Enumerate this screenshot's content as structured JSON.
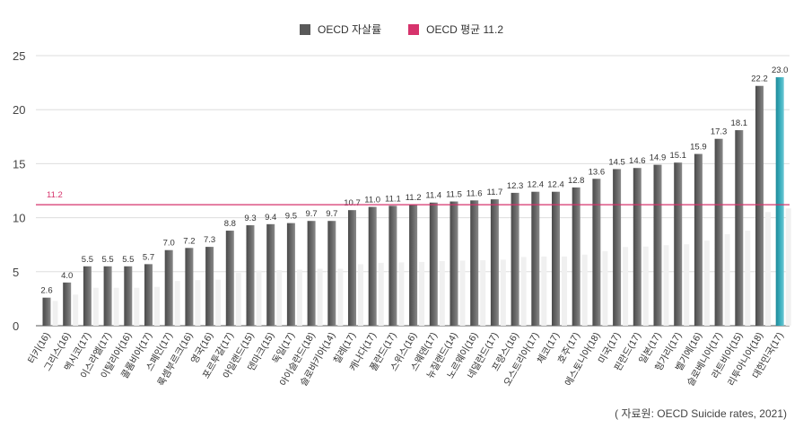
{
  "chart_data": {
    "type": "bar",
    "legend": {
      "series_label": "OECD 자살률",
      "average_label": "OECD 평균 11.2",
      "series_color": "#595959",
      "average_color": "#d6336c",
      "highlight_color": "#2e9fb0"
    },
    "categories": [
      "터키(16)",
      "그리스(16)",
      "멕시코(17)",
      "이스라엘(17)",
      "이탈리아(16)",
      "콜롬비아(17)",
      "스페인(17)",
      "룩셈부르크(16)",
      "영국(16)",
      "포르투갈(17)",
      "아일랜드(15)",
      "덴마크(15)",
      "독일(17)",
      "아이슬란드(18)",
      "슬로바키아(14)",
      "칠레(17)",
      "캐나다(17)",
      "폴란드(17)",
      "스위스(16)",
      "스웨덴(17)",
      "뉴질랜드(14)",
      "노르웨이(16)",
      "네덜란드(17)",
      "프랑스(16)",
      "오스트리아(17)",
      "체코(17)",
      "호주(17)",
      "에스토니아(18)",
      "미국(17)",
      "핀란드(17)",
      "일본(17)",
      "헝가리(17)",
      "벨기에(16)",
      "슬로베니아(17)",
      "라트비아(15)",
      "리투아니아(18)",
      "대한민국(17)"
    ],
    "values": [
      2.6,
      4.0,
      5.5,
      5.5,
      5.5,
      5.7,
      7.0,
      7.2,
      7.3,
      8.8,
      9.3,
      9.4,
      9.5,
      9.7,
      9.7,
      10.7,
      11.0,
      11.1,
      11.2,
      11.4,
      11.5,
      11.6,
      11.7,
      12.3,
      12.4,
      12.4,
      12.8,
      13.6,
      14.5,
      14.6,
      14.9,
      15.1,
      15.9,
      17.3,
      18.1,
      22.2,
      23.0
    ],
    "value_labels": [
      "2.6",
      "4.0",
      "5.5",
      "5.5",
      "5.5",
      "5.7",
      "7.0",
      "7.2",
      "7.3",
      "8.8",
      "9.3",
      "9.4",
      "9.5",
      "9.7",
      "9.7",
      "10.7",
      "11.0",
      "11.1",
      "11.2",
      "11.4",
      "11.5",
      "11.6",
      "11.7",
      "12.3",
      "12.4",
      "12.4",
      "12.8",
      "13.6",
      "14.5",
      "14.6",
      "14.9",
      "15.1",
      "15.9",
      "17.3",
      "18.1",
      "22.2",
      "23.0"
    ],
    "highlight_index": 36,
    "average": 11.2,
    "average_label": "11.2",
    "ylim": [
      0,
      25
    ],
    "yticks": [
      0,
      5,
      10,
      15,
      20,
      25
    ],
    "ytick_labels": [
      "0",
      "5",
      "10",
      "15",
      "20",
      "25"
    ],
    "grid": true
  },
  "source": "( 자료원: OECD Suicide rates, 2021)"
}
